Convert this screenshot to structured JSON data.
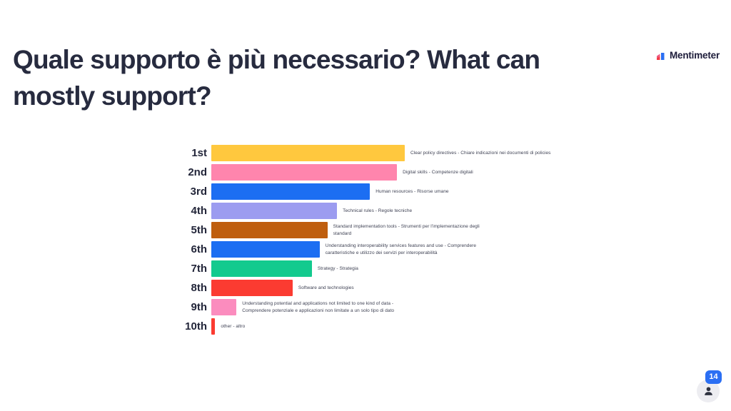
{
  "header": {
    "title_lines": [
      "Quale supporto è più necessario? What can",
      "mostly support?"
    ],
    "title_full": "Quale supporto è più necessario? What can mostly support?",
    "logo_text": "Mentimeter"
  },
  "participants": {
    "count": "14"
  },
  "chart_data": {
    "type": "bar",
    "orientation": "horizontal",
    "title": "Quale supporto è più necessario? What can mostly support?",
    "xlabel": "",
    "ylabel": "",
    "xlim": [
      0,
      100
    ],
    "grid": false,
    "legend": false,
    "categories": [
      "1st",
      "2nd",
      "3rd",
      "4th",
      "5th",
      "6th",
      "7th",
      "8th",
      "9th",
      "10th"
    ],
    "values": [
      100,
      96,
      82,
      65,
      60,
      56,
      52,
      42,
      13,
      2
    ],
    "rows": [
      {
        "rank": "1st",
        "label": "Clear policy directives - Chiare indicazioni nei documenti di policies",
        "value": 100,
        "color": "#FFC83E"
      },
      {
        "rank": "2nd",
        "label": "Digital skills - Competenze digitali",
        "value": 96,
        "color": "#FF85AD"
      },
      {
        "rank": "3rd",
        "label": "Human resources - Risorse umane",
        "value": 82,
        "color": "#1C6EF2"
      },
      {
        "rank": "4th",
        "label": "Technical rules - Regole tecniche",
        "value": 65,
        "color": "#9C9CF0"
      },
      {
        "rank": "5th",
        "label": "Standard implementation tools - Strumenti per l'implementazione degli standard",
        "value": 60,
        "color": "#BF5E0E"
      },
      {
        "rank": "6th",
        "label": "Understanding interoperability services features and use - Comprendere caratteristiche e utilizzo dei servizi per interoperabilità",
        "value": 56,
        "color": "#1C6EF2"
      },
      {
        "rank": "7th",
        "label": "Strategy - Strategia",
        "value": 52,
        "color": "#13CA8E"
      },
      {
        "rank": "8th",
        "label": "Software and technologies",
        "value": 42,
        "color": "#FB3B31"
      },
      {
        "rank": "9th",
        "label": "Understanding potential and applications not limited to one kind of data - Comprendere potenziale e applicazioni non limitate a un solo tipo di dato",
        "value": 13,
        "color": "#FB8CBE"
      },
      {
        "rank": "10th",
        "label": "other - altro",
        "value": 2,
        "color": "#FB3B31"
      }
    ],
    "colors": {
      "badge_blue": "#2B6FF3",
      "title_text": "#272B3F",
      "label_text": "#3F4254"
    }
  }
}
